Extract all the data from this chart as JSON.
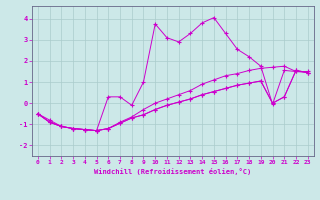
{
  "xlabel": "Windchill (Refroidissement éolien,°C)",
  "ylabel": "",
  "bg_color": "#cce8e8",
  "line_color": "#cc00cc",
  "grid_color": "#aacccc",
  "xlim": [
    -0.5,
    23.5
  ],
  "ylim": [
    -2.5,
    4.6
  ],
  "xticks": [
    0,
    1,
    2,
    3,
    4,
    5,
    6,
    7,
    8,
    9,
    10,
    11,
    12,
    13,
    14,
    15,
    16,
    17,
    18,
    19,
    20,
    21,
    22,
    23
  ],
  "yticks": [
    -2,
    -1,
    0,
    1,
    2,
    3,
    4
  ],
  "series_x": [
    [
      0,
      1,
      2,
      3,
      4,
      5,
      6,
      7,
      8,
      9,
      10,
      11,
      12,
      13,
      14,
      15,
      16,
      17,
      18,
      19,
      20,
      21,
      22,
      23
    ],
    [
      0,
      1,
      2,
      3,
      4,
      5,
      6,
      7,
      8,
      9,
      10,
      11,
      12,
      13,
      14,
      15,
      16,
      17,
      18,
      19,
      20,
      21,
      22,
      23
    ],
    [
      0,
      1,
      2,
      3,
      4,
      5,
      6,
      7,
      8,
      9,
      10,
      11,
      12,
      13,
      14,
      15,
      16,
      17,
      18,
      19,
      20,
      21,
      22,
      23
    ],
    [
      0,
      1,
      2,
      3,
      4,
      5,
      6,
      7,
      8,
      9,
      10,
      11,
      12,
      13,
      14,
      15,
      16,
      17,
      18,
      19,
      20,
      21,
      22,
      23
    ]
  ],
  "series_y": [
    [
      -0.5,
      -0.8,
      -1.1,
      -1.2,
      -1.25,
      -1.3,
      0.3,
      0.3,
      -0.1,
      1.0,
      3.75,
      3.1,
      2.9,
      3.3,
      3.8,
      4.05,
      3.3,
      2.55,
      2.2,
      1.75,
      -0.05,
      1.55,
      1.5,
      1.5
    ],
    [
      -0.5,
      -0.9,
      -1.1,
      -1.2,
      -1.25,
      -1.3,
      -1.2,
      -0.9,
      -0.65,
      -0.3,
      0.0,
      0.2,
      0.4,
      0.6,
      0.9,
      1.1,
      1.3,
      1.4,
      1.55,
      1.65,
      1.7,
      1.75,
      1.5,
      1.45
    ],
    [
      -0.5,
      -0.9,
      -1.1,
      -1.2,
      -1.25,
      -1.3,
      -1.2,
      -0.95,
      -0.7,
      -0.55,
      -0.3,
      -0.1,
      0.05,
      0.2,
      0.4,
      0.55,
      0.7,
      0.85,
      0.95,
      1.05,
      0.0,
      0.3,
      1.55,
      1.45
    ],
    [
      -0.5,
      -0.9,
      -1.1,
      -1.2,
      -1.25,
      -1.3,
      -1.2,
      -0.95,
      -0.7,
      -0.55,
      -0.3,
      -0.1,
      0.05,
      0.2,
      0.4,
      0.55,
      0.7,
      0.85,
      0.95,
      1.05,
      0.0,
      0.3,
      1.55,
      1.45
    ]
  ]
}
